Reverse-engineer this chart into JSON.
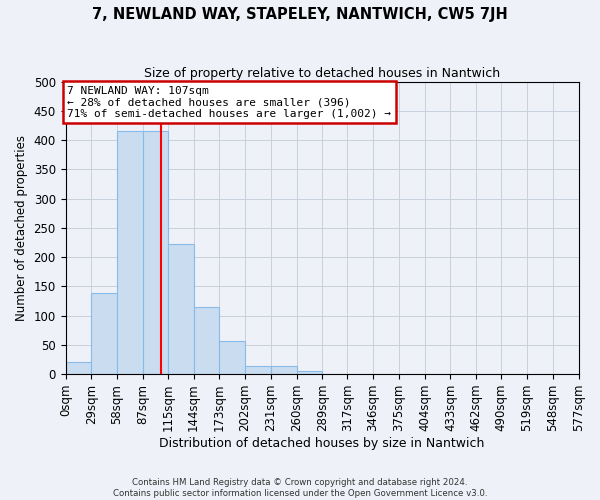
{
  "title": "7, NEWLAND WAY, STAPELEY, NANTWICH, CW5 7JH",
  "subtitle": "Size of property relative to detached houses in Nantwich",
  "xlabel": "Distribution of detached houses by size in Nantwich",
  "ylabel": "Number of detached properties",
  "bin_edges": [
    0,
    29,
    58,
    87,
    115,
    144,
    173,
    202,
    231,
    260,
    289,
    317,
    346,
    375,
    404,
    433,
    462,
    490,
    519,
    548,
    577
  ],
  "bin_labels": [
    "0sqm",
    "29sqm",
    "58sqm",
    "87sqm",
    "115sqm",
    "144sqm",
    "173sqm",
    "202sqm",
    "231sqm",
    "260sqm",
    "289sqm",
    "317sqm",
    "346sqm",
    "375sqm",
    "404sqm",
    "433sqm",
    "462sqm",
    "490sqm",
    "519sqm",
    "548sqm",
    "577sqm"
  ],
  "bar_heights": [
    20,
    138,
    415,
    415,
    222,
    115,
    57,
    13,
    14,
    5,
    1,
    1,
    1,
    0,
    0,
    1,
    0,
    0,
    1,
    1
  ],
  "bar_color": "#c9dcf0",
  "bar_edge_color": "#88bbe8",
  "property_line_x": 107,
  "property_line_color": "red",
  "annotation_title": "7 NEWLAND WAY: 107sqm",
  "annotation_line1": "← 28% of detached houses are smaller (396)",
  "annotation_line2": "71% of semi-detached houses are larger (1,002) →",
  "annotation_box_color": "#cc0000",
  "ylim": [
    0,
    500
  ],
  "yticks": [
    0,
    50,
    100,
    150,
    200,
    250,
    300,
    350,
    400,
    450,
    500
  ],
  "grid_color": "#c8d0dc",
  "background_color": "#eef2f8",
  "footer_line1": "Contains HM Land Registry data © Crown copyright and database right 2024.",
  "footer_line2": "Contains public sector information licensed under the Open Government Licence v3.0."
}
